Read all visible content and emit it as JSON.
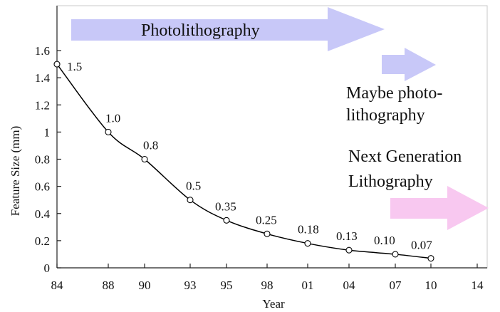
{
  "chart_data": {
    "type": "line",
    "title": "",
    "xlabel": "Year",
    "ylabel": "Feature Size (mm)",
    "x_tick_labels": [
      "84",
      "88",
      "90",
      "93",
      "95",
      "98",
      "01",
      "04",
      "07",
      "10",
      "14"
    ],
    "y_ticks": [
      0,
      0.2,
      0.4,
      0.6,
      0.8,
      1,
      1.2,
      1.4,
      1.6
    ],
    "y_tick_labels": [
      "0",
      "0.2",
      "0.4",
      "0.6",
      "0.8",
      "1",
      "1.2",
      "1.4",
      "1.6"
    ],
    "ylim": [
      0,
      1.6
    ],
    "grid": false,
    "series": [
      {
        "x": [
          "84",
          "88",
          "90",
          "93",
          "95",
          "98",
          "01",
          "04",
          "07",
          "10"
        ],
        "values": [
          1.5,
          1.0,
          0.8,
          0.5,
          0.35,
          0.25,
          0.18,
          0.13,
          0.1,
          0.07
        ],
        "labels": [
          "1.5",
          "1.0",
          "0.8",
          "0.5",
          "0.35",
          "0.25",
          "0.18",
          "0.13",
          "0.10",
          "0.07"
        ]
      }
    ],
    "annotations": {
      "photolithography": "Photolithography",
      "maybe_line1": "Maybe photo-",
      "maybe_line2": "lithography",
      "ngl_line1": "Next Generation",
      "ngl_line2": "Lithography"
    },
    "colors": {
      "photolithography_arrow": "#c8c8f8",
      "maybe_arrow": "#c8c8f8",
      "ngl_arrow": "#f8c8f0",
      "plot_frame": "#c8c8c8",
      "curve": "#000000"
    }
  }
}
